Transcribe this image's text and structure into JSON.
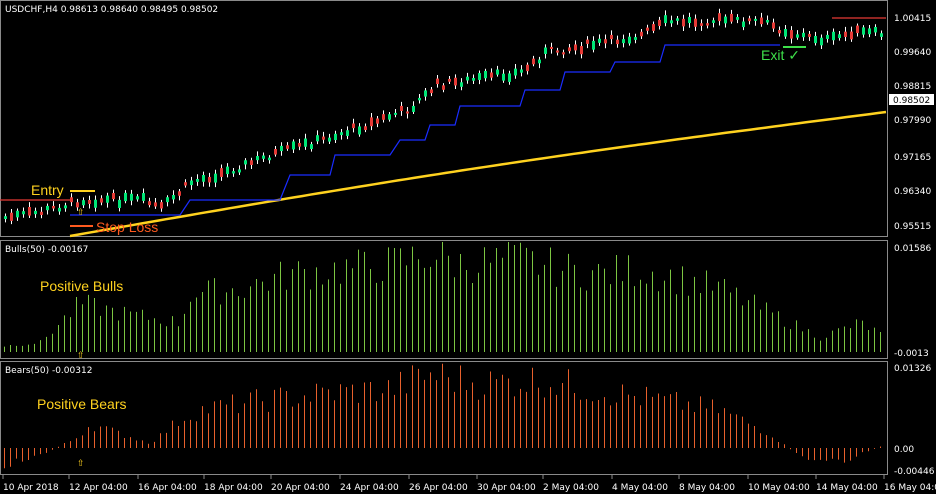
{
  "header": {
    "symbol": "USDCHF,H4",
    "ohlc": "0.98613 0.98640 0.98495 0.98502"
  },
  "price_axis": {
    "labels": [
      "1.00415",
      "0.99640",
      "0.98815",
      "0.97990",
      "0.97165",
      "0.96340",
      "0.95515"
    ],
    "current_price": "0.98502"
  },
  "bulls_panel": {
    "title": "Bulls(50) -0.00167",
    "axis_top": "0.01586",
    "axis_bottom": "-0.0013",
    "annotation": "Positive Bulls"
  },
  "bears_panel": {
    "title": "Bears(50) -0.00312",
    "axis_top": "0.01326",
    "axis_mid": "0.00",
    "axis_bottom": "-0.00446",
    "annotation": "Positive Bears"
  },
  "annotations": {
    "entry": "Entry",
    "stop_loss": "Stop Loss",
    "exit": "Exit ✓"
  },
  "time_axis": [
    "10 Apr 2018",
    "12 Apr 04:00",
    "16 Apr 04:00",
    "18 Apr 04:00",
    "20 Apr 04:00",
    "24 Apr 04:00",
    "26 Apr 04:00",
    "30 Apr 04:00",
    "2 May 04:00",
    "4 May 04:00",
    "8 May 04:00",
    "10 May 04:00",
    "14 May 04:00",
    "16 May 04:00"
  ],
  "colors": {
    "bull_candle": "#00e676",
    "bear_candle": "#e53935",
    "trailing_stop": "#1a2cff",
    "moving_average": "#ffd21f",
    "bulls_histogram": "#7cc642",
    "bears_histogram": "#e8602c",
    "entry": "#ffd21f",
    "stop_loss": "#ff5a1f",
    "exit": "#3ee04a"
  }
}
